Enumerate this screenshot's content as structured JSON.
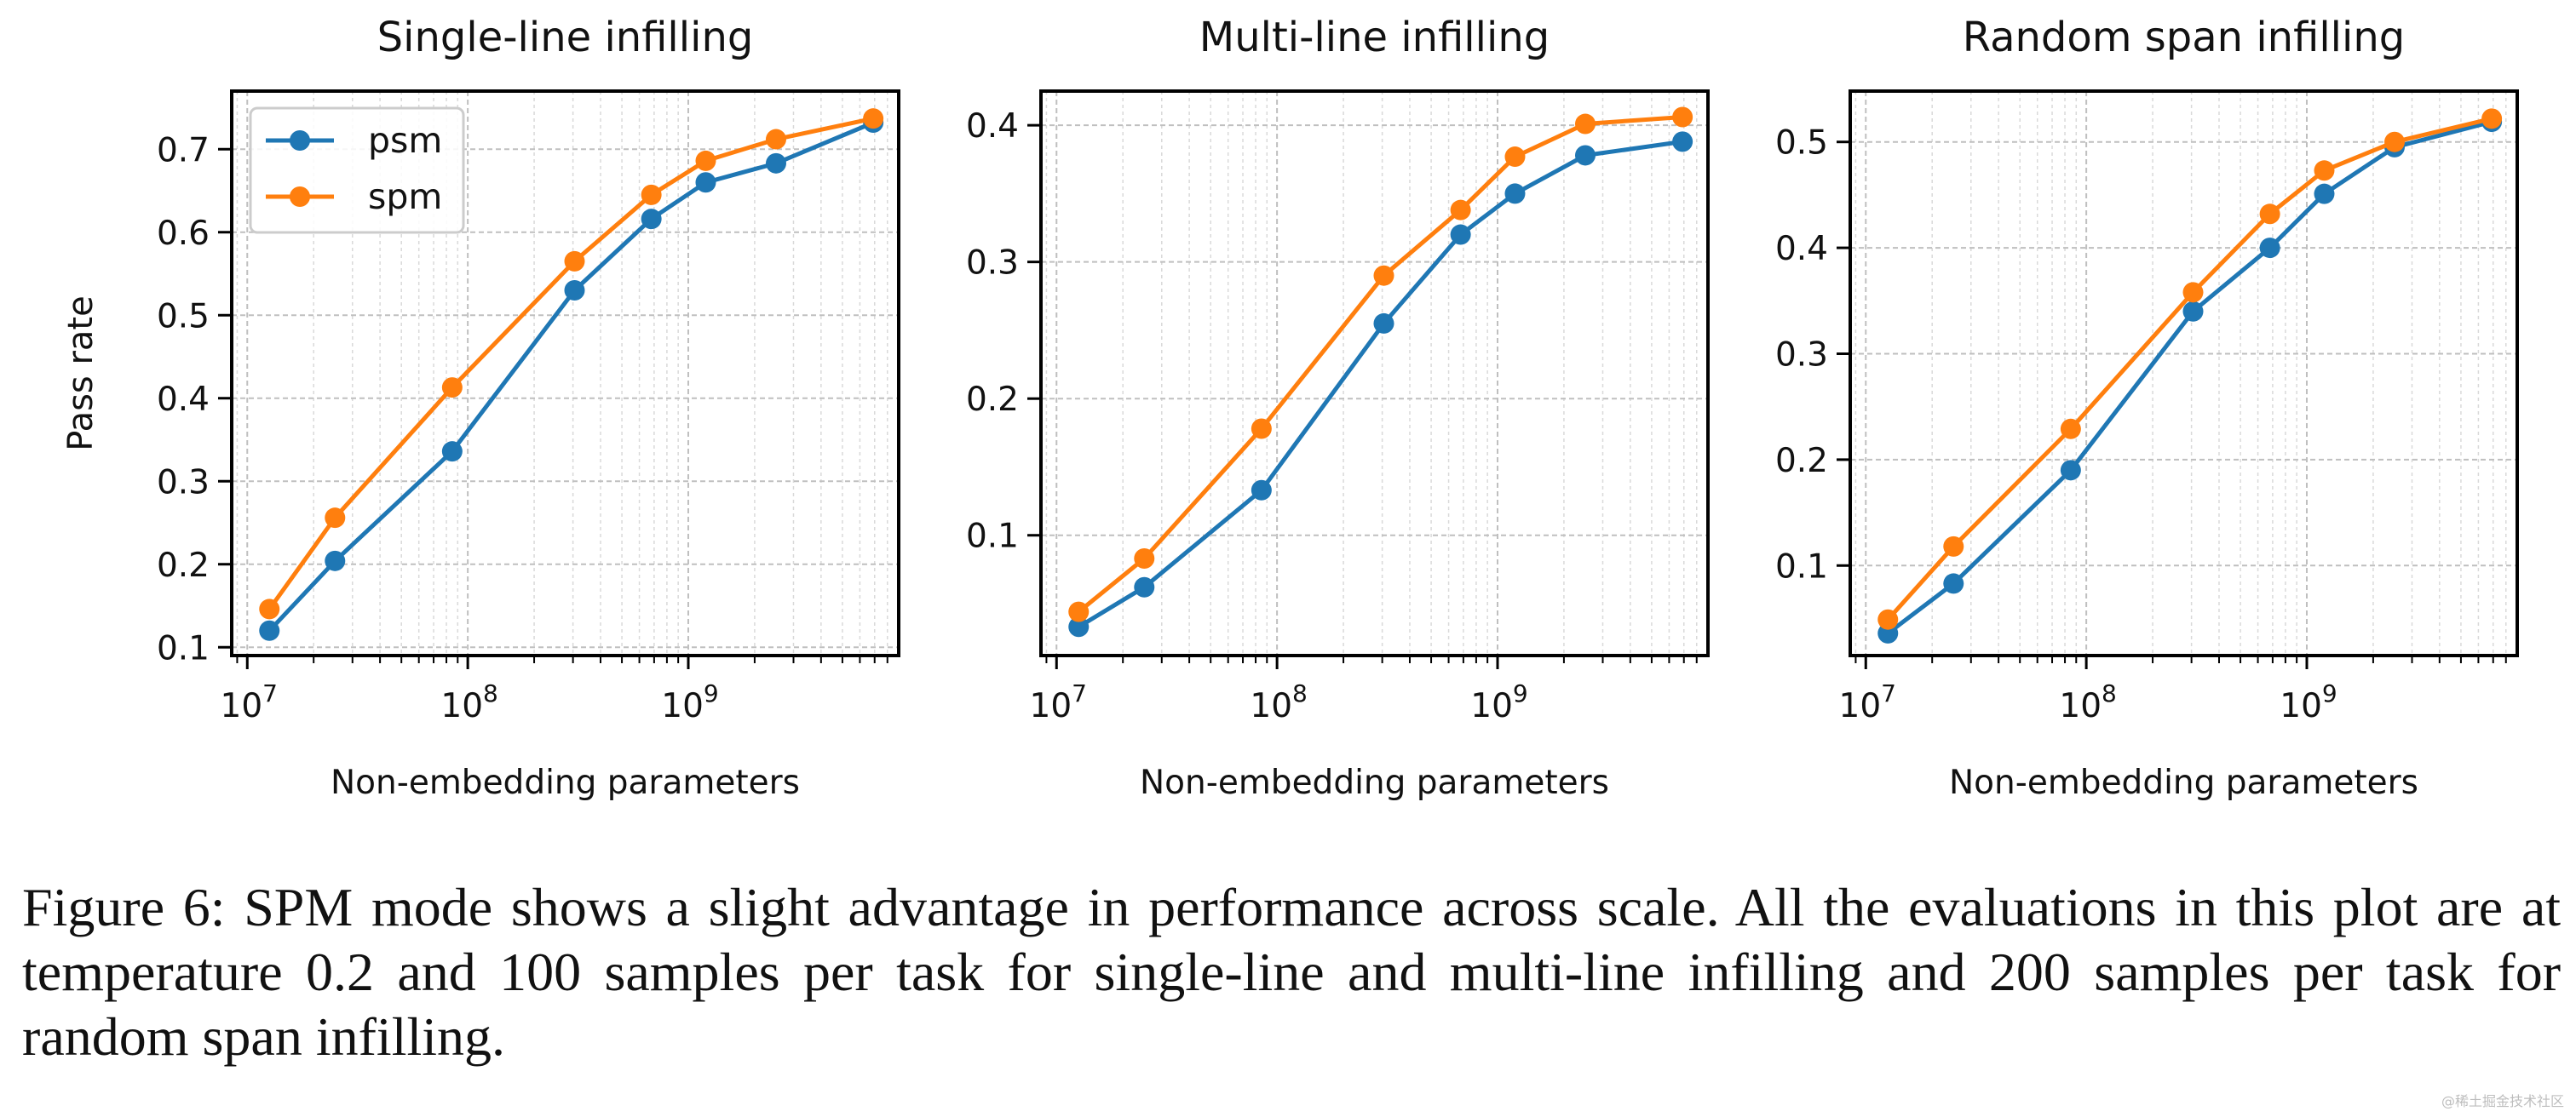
{
  "chart_data": [
    {
      "type": "line",
      "title": "Single-line infilling",
      "xlabel": "Non-embedding parameters",
      "ylabel": "Pass rate",
      "xscale": "log",
      "xlim": [
        8500000,
        9000000000
      ],
      "ylim": [
        0.09,
        0.77
      ],
      "yticks": [
        0.1,
        0.2,
        0.3,
        0.4,
        0.5,
        0.6,
        0.7
      ],
      "ytick_labels": [
        "0.1",
        "0.2",
        "0.3",
        "0.4",
        "0.5",
        "0.6",
        "0.7"
      ],
      "grid": true,
      "legend": "top-left",
      "x": [
        12600000,
        25000000,
        85000000,
        305000000,
        680000000,
        1200000000,
        2500000000,
        6900000000
      ],
      "series": [
        {
          "name": "psm",
          "values": [
            0.12,
            0.204,
            0.336,
            0.53,
            0.616,
            0.66,
            0.683,
            0.732
          ]
        },
        {
          "name": "spm",
          "values": [
            0.146,
            0.256,
            0.413,
            0.565,
            0.645,
            0.686,
            0.712,
            0.737
          ]
        }
      ]
    },
    {
      "type": "line",
      "title": "Multi-line infilling",
      "xlabel": "Non-embedding parameters",
      "ylabel": "",
      "xscale": "log",
      "xlim": [
        8500000,
        9000000000
      ],
      "ylim": [
        0.012,
        0.425
      ],
      "yticks": [
        0.1,
        0.2,
        0.3,
        0.4
      ],
      "ytick_labels": [
        "0.1",
        "0.2",
        "0.3",
        "0.4"
      ],
      "grid": true,
      "legend": "",
      "x": [
        12600000,
        25000000,
        85000000,
        305000000,
        680000000,
        1200000000,
        2500000000,
        6900000000
      ],
      "series": [
        {
          "name": "psm",
          "values": [
            0.033,
            0.062,
            0.133,
            0.255,
            0.32,
            0.35,
            0.378,
            0.388
          ]
        },
        {
          "name": "spm",
          "values": [
            0.044,
            0.083,
            0.178,
            0.29,
            0.338,
            0.377,
            0.401,
            0.406
          ]
        }
      ]
    },
    {
      "type": "line",
      "title": "Random span infilling",
      "xlabel": "Non-embedding parameters",
      "ylabel": "",
      "xscale": "log",
      "xlim": [
        8500000,
        9000000000
      ],
      "ylim": [
        0.015,
        0.548
      ],
      "yticks": [
        0.1,
        0.2,
        0.3,
        0.4,
        0.5
      ],
      "ytick_labels": [
        "0.1",
        "0.2",
        "0.3",
        "0.4",
        "0.5"
      ],
      "grid": true,
      "legend": "",
      "x": [
        12600000,
        25000000,
        85000000,
        305000000,
        680000000,
        1200000000,
        2500000000,
        6900000000
      ],
      "series": [
        {
          "name": "psm",
          "values": [
            0.036,
            0.083,
            0.19,
            0.34,
            0.4,
            0.451,
            0.495,
            0.519
          ]
        },
        {
          "name": "spm",
          "values": [
            0.049,
            0.118,
            0.229,
            0.358,
            0.432,
            0.473,
            0.5,
            0.522
          ]
        }
      ]
    }
  ],
  "xtick_exponents": [
    "7",
    "8",
    "9"
  ],
  "xtick_base": "10",
  "series_colors": {
    "psm": "#1f77b4",
    "spm": "#ff7f0e"
  },
  "caption": "Figure 6: SPM mode shows a slight advantage in performance across scale. All the evaluations in this plot are at temperature 0.2 and 100 samples per task for single-line and multi-line infilling and 200 samples per task for random span infilling.",
  "watermark": "@稀土掘金技术社区"
}
